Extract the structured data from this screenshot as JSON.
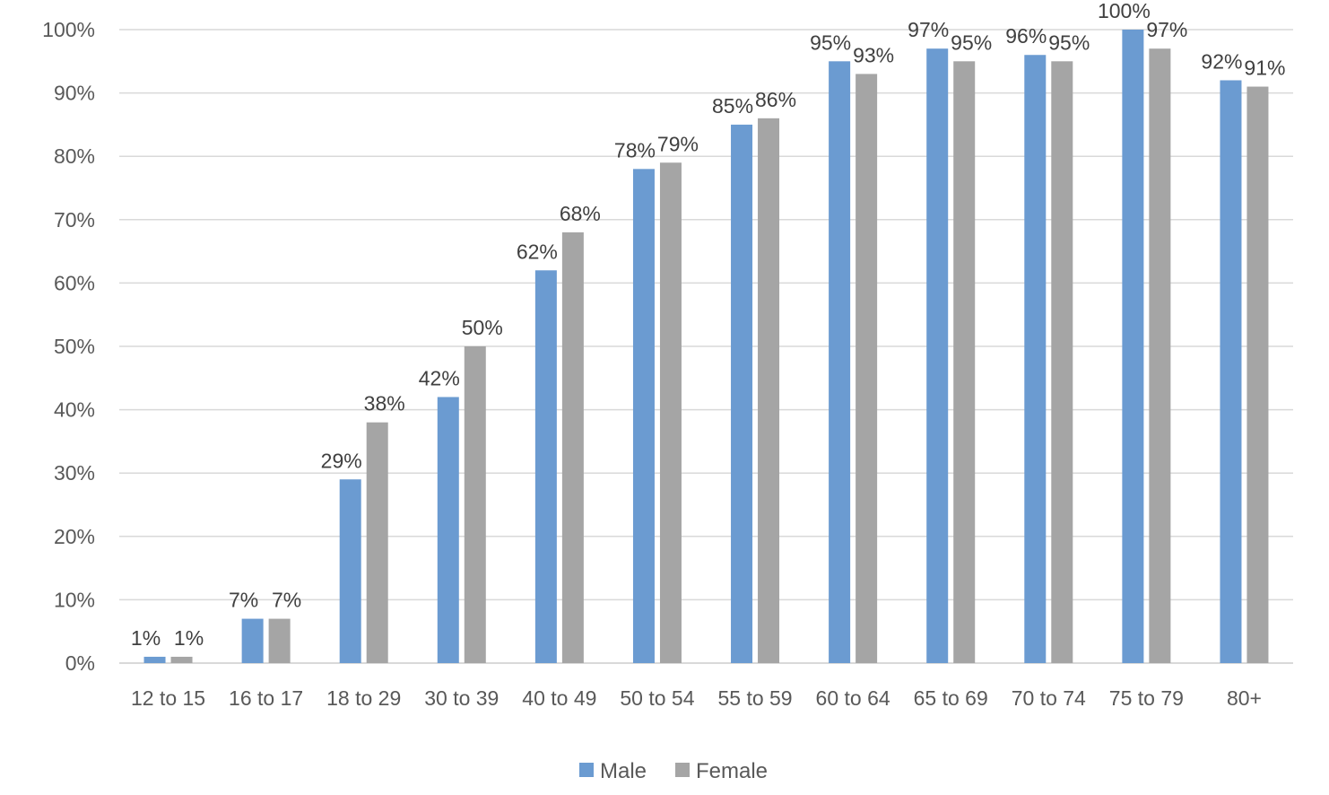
{
  "chart_data": {
    "type": "bar",
    "categories": [
      "12 to 15",
      "16 to 17",
      "18 to 29",
      "30 to 39",
      "40 to 49",
      "50 to 54",
      "55 to 59",
      "60 to 64",
      "65 to 69",
      "70 to 74",
      "75 to 79",
      "80+"
    ],
    "series": [
      {
        "name": "Male",
        "color": "#6b9bd1",
        "values": [
          1,
          7,
          29,
          42,
          62,
          78,
          85,
          95,
          97,
          96,
          100,
          92
        ],
        "value_labels": [
          "1%",
          "7%",
          "29%",
          "42%",
          "62%",
          "78%",
          "85%",
          "95%",
          "97%",
          "96%",
          "100%",
          "92%"
        ]
      },
      {
        "name": "Female",
        "color": "#a5a5a5",
        "values": [
          1,
          7,
          38,
          50,
          68,
          79,
          86,
          93,
          95,
          95,
          97,
          91
        ],
        "value_labels": [
          "1%",
          "7%",
          "38%",
          "50%",
          "68%",
          "79%",
          "86%",
          "93%",
          "95%",
          "95%",
          "97%",
          "91%"
        ]
      }
    ],
    "ylim": [
      0,
      100
    ],
    "yticks": [
      "0%",
      "10%",
      "20%",
      "30%",
      "40%",
      "50%",
      "60%",
      "70%",
      "80%",
      "90%",
      "100%"
    ],
    "title": "",
    "xlabel": "",
    "ylabel": "",
    "grid": true,
    "legend": "bottom-center",
    "gridline_color": "#d9d9d9"
  }
}
